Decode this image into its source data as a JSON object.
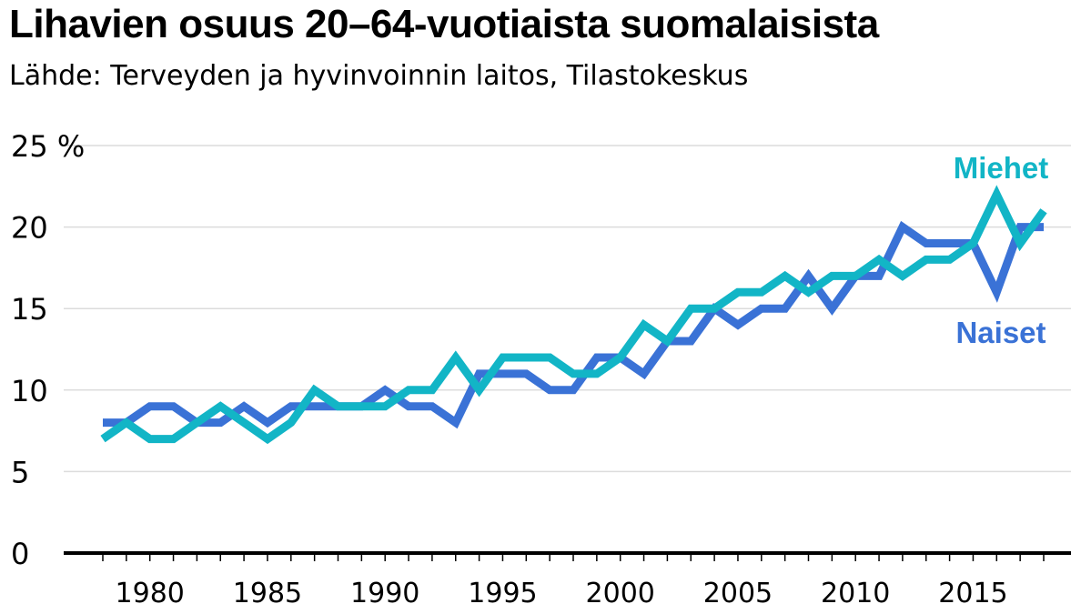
{
  "header": {
    "title": "Lihavien osuus 20–64-vuotiaista suomalaisista",
    "subtitle": "Lähde: Terveyden ja hyvinvoinnin laitos, Tilastokeskus"
  },
  "chart_data": {
    "type": "line",
    "title": "Lihavien osuus 20–64-vuotiaista suomalaisista",
    "subtitle": "Lähde: Terveyden ja hyvinvoinnin laitos, Tilastokeskus",
    "xlabel": "",
    "ylabel": "",
    "xlim": [
      1978,
      2018
    ],
    "ylim": [
      0,
      25
    ],
    "grid": true,
    "y_ticks": [
      0,
      5,
      10,
      15,
      20,
      25
    ],
    "y_tick_labels": [
      "0",
      "5",
      "10",
      "15",
      "20",
      "25 %"
    ],
    "x_ticks": [
      1980,
      1985,
      1990,
      1995,
      2000,
      2005,
      2010,
      2015
    ],
    "x_tick_labels": [
      "1980",
      "1985",
      "1990",
      "1995",
      "2000",
      "2005",
      "2010",
      "2015"
    ],
    "x": [
      1978,
      1979,
      1980,
      1981,
      1982,
      1983,
      1984,
      1985,
      1986,
      1987,
      1988,
      1989,
      1990,
      1991,
      1992,
      1993,
      1994,
      1995,
      1996,
      1997,
      1998,
      1999,
      2000,
      2001,
      2002,
      2003,
      2004,
      2005,
      2006,
      2007,
      2008,
      2009,
      2010,
      2011,
      2012,
      2013,
      2014,
      2015,
      2016,
      2017,
      2018
    ],
    "series": [
      {
        "name": "Naiset",
        "color": "#3a72d6",
        "values": [
          8,
          8,
          9,
          9,
          8,
          8,
          9,
          8,
          9,
          9,
          9,
          9,
          10,
          9,
          9,
          8,
          11,
          11,
          11,
          10,
          10,
          12,
          12,
          11,
          13,
          13,
          15,
          14,
          15,
          15,
          17,
          15,
          17,
          17,
          20,
          19,
          19,
          19,
          16,
          20,
          20
        ]
      },
      {
        "name": "Miehet",
        "color": "#12b5c6",
        "values": [
          7,
          8,
          7,
          7,
          8,
          9,
          8,
          7,
          8,
          10,
          9,
          9,
          9,
          10,
          10,
          12,
          10,
          12,
          12,
          12,
          11,
          11,
          12,
          14,
          13,
          15,
          15,
          16,
          16,
          17,
          16,
          17,
          17,
          18,
          17,
          18,
          18,
          19,
          22,
          19,
          21
        ]
      }
    ]
  }
}
